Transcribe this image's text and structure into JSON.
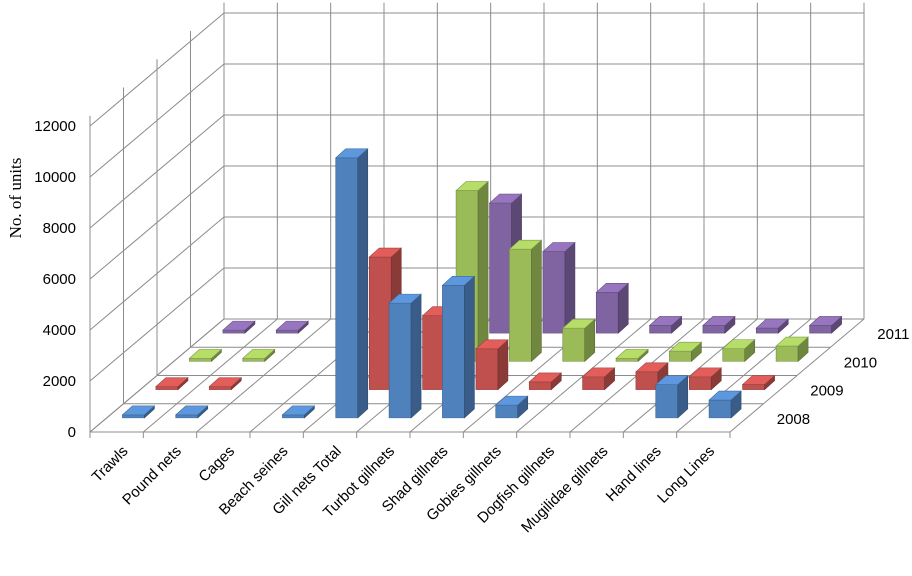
{
  "chart_data": {
    "type": "bar",
    "categories": [
      "Trawls",
      "Pound nets",
      "Cages",
      "Beach seines",
      "Gill nets Total",
      "Turbot gillnets",
      "Shad gillnets",
      "Gobies gillnets",
      "Dogfish gillnets",
      "Mugilidae gillnets",
      "Hand lines",
      "Long Lines"
    ],
    "series": [
      {
        "name": "2008",
        "values": [
          40,
          30,
          null,
          20,
          10200,
          4500,
          5200,
          500,
          null,
          null,
          1300,
          700
        ]
      },
      {
        "name": "2009",
        "values": [
          50,
          40,
          null,
          null,
          5200,
          2900,
          1600,
          300,
          500,
          700,
          500,
          200
        ]
      },
      {
        "name": "2010",
        "values": [
          40,
          40,
          null,
          null,
          null,
          6700,
          4400,
          1300,
          100,
          400,
          500,
          600
        ]
      },
      {
        "name": "2011",
        "values": [
          50,
          40,
          null,
          100,
          null,
          5100,
          3200,
          1600,
          300,
          300,
          200,
          300
        ]
      }
    ],
    "ylabel": "No. of units",
    "yticks": [
      "0",
      "2000",
      "4000",
      "6000",
      "8000",
      "10000",
      "12000"
    ],
    "ylim": [
      0,
      12000
    ],
    "legend": "depth-axis labels on right",
    "grid": true,
    "colors": {
      "2008": "#4f81bd",
      "2009": "#c0504d",
      "2010": "#9bbb59",
      "2011": "#8064a2",
      "grid": "#8c8c8c"
    }
  }
}
